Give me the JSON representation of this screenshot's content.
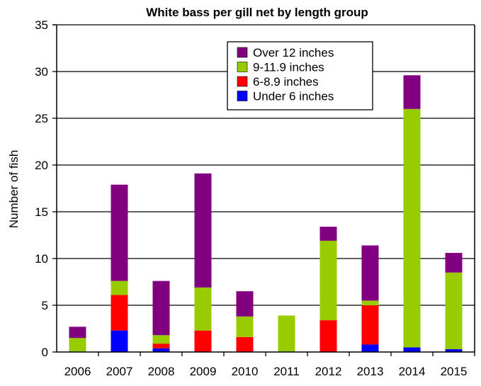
{
  "chart_data": {
    "type": "bar",
    "stacked": true,
    "title": "White bass per gill net by length group",
    "xlabel": "",
    "ylabel": "Number of fish",
    "ylim": [
      0,
      35
    ],
    "yticks": [
      "0",
      "5",
      "10",
      "15",
      "20",
      "25",
      "30",
      "35"
    ],
    "grid": "horizontal",
    "legend_position": "top-right",
    "categories": [
      "2006",
      "2007",
      "2008",
      "2009",
      "2010",
      "2011",
      "2012",
      "2013",
      "2014",
      "2015"
    ],
    "series": [
      {
        "name": "Under 6 inches",
        "color": "#0000FF",
        "values": [
          0,
          2.3,
          0.4,
          0,
          0,
          0,
          0,
          0.8,
          0.5,
          0.3
        ]
      },
      {
        "name": "6-8.9 inches",
        "color": "#FF0000",
        "values": [
          0,
          3.8,
          0.5,
          2.3,
          1.6,
          0,
          3.4,
          4.2,
          0,
          0
        ]
      },
      {
        "name": "9-11.9 inches",
        "color": "#99CC00",
        "values": [
          1.5,
          1.5,
          0.9,
          4.6,
          2.2,
          3.9,
          8.5,
          0.5,
          25.5,
          8.2
        ]
      },
      {
        "name": "Over 12 inches",
        "color": "#800080",
        "values": [
          1.2,
          10.3,
          5.8,
          12.2,
          2.7,
          0,
          1.5,
          5.9,
          3.6,
          2.1
        ]
      }
    ],
    "legend_order": [
      "Over 12 inches",
      "9-11.9 inches",
      "6-8.9 inches",
      "Under 6 inches"
    ]
  }
}
